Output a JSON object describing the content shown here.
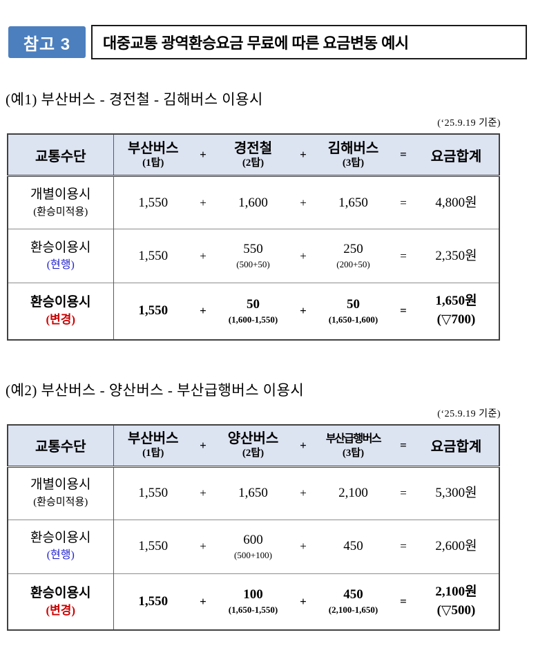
{
  "colors": {
    "badge_blue": "#4C7FBE",
    "table_header_bg": "#DCE3F1",
    "current_label_blue": "#2222CC",
    "changed_label_red": "#CC0000"
  },
  "page": {
    "badge_label": "참고 3",
    "title": "대중교통 광역환승요금 무료에 따른 요금변동 예시"
  },
  "shared": {
    "col_transport": "교통수단",
    "col_total": "요금합계",
    "plus": "+",
    "equals": "="
  },
  "example1": {
    "heading": "(예1) 부산버스 - 경전철 - 김해버스 이용시",
    "date_note": "(‘25.9.19 기준)",
    "legs": [
      {
        "name": "부산버스",
        "sub": "(1탑)"
      },
      {
        "name": "경전철",
        "sub": "(2탑)"
      },
      {
        "name": "김해버스",
        "sub": "(3탑)"
      }
    ],
    "rows": [
      {
        "label": "개별이용시",
        "label_sub": "(환승미적용)",
        "v1": "1,550",
        "v2": "1,600",
        "v3": "1,650",
        "total": "4,800원"
      },
      {
        "label": "환승이용시",
        "label_sub": "(현행)",
        "v1": "1,550",
        "v2": "550",
        "v2_sub": "(500+50)",
        "v3": "250",
        "v3_sub": "(200+50)",
        "total": "2,350원"
      },
      {
        "label": "환승이용시",
        "label_sub": "(변경)",
        "v1": "1,550",
        "v2": "50",
        "v2_sub": "(1,600-1,550)",
        "v3": "50",
        "v3_sub": "(1,650-1,600)",
        "total": "1,650원",
        "total_sub": "(▽700)"
      }
    ]
  },
  "example2": {
    "heading": "(예2) 부산버스 - 양산버스 - 부산급행버스 이용시",
    "date_note": "(‘25.9.19 기준)",
    "legs": [
      {
        "name": "부산버스",
        "sub": "(1탑)"
      },
      {
        "name": "양산버스",
        "sub": "(2탑)"
      },
      {
        "name": "부산급행버스",
        "sub": "(3탑)"
      }
    ],
    "rows": [
      {
        "label": "개별이용시",
        "label_sub": "(환승미적용)",
        "v1": "1,550",
        "v2": "1,650",
        "v3": "2,100",
        "total": "5,300원"
      },
      {
        "label": "환승이용시",
        "label_sub": "(현행)",
        "v1": "1,550",
        "v2": "600",
        "v2_sub": "(500+100)",
        "v3": "450",
        "total": "2,600원"
      },
      {
        "label": "환승이용시",
        "label_sub": "(변경)",
        "v1": "1,550",
        "v2": "100",
        "v2_sub": "(1,650-1,550)",
        "v3": "450",
        "v3_sub": "(2,100-1,650)",
        "total": "2,100원",
        "total_sub": "(▽500)"
      }
    ]
  }
}
